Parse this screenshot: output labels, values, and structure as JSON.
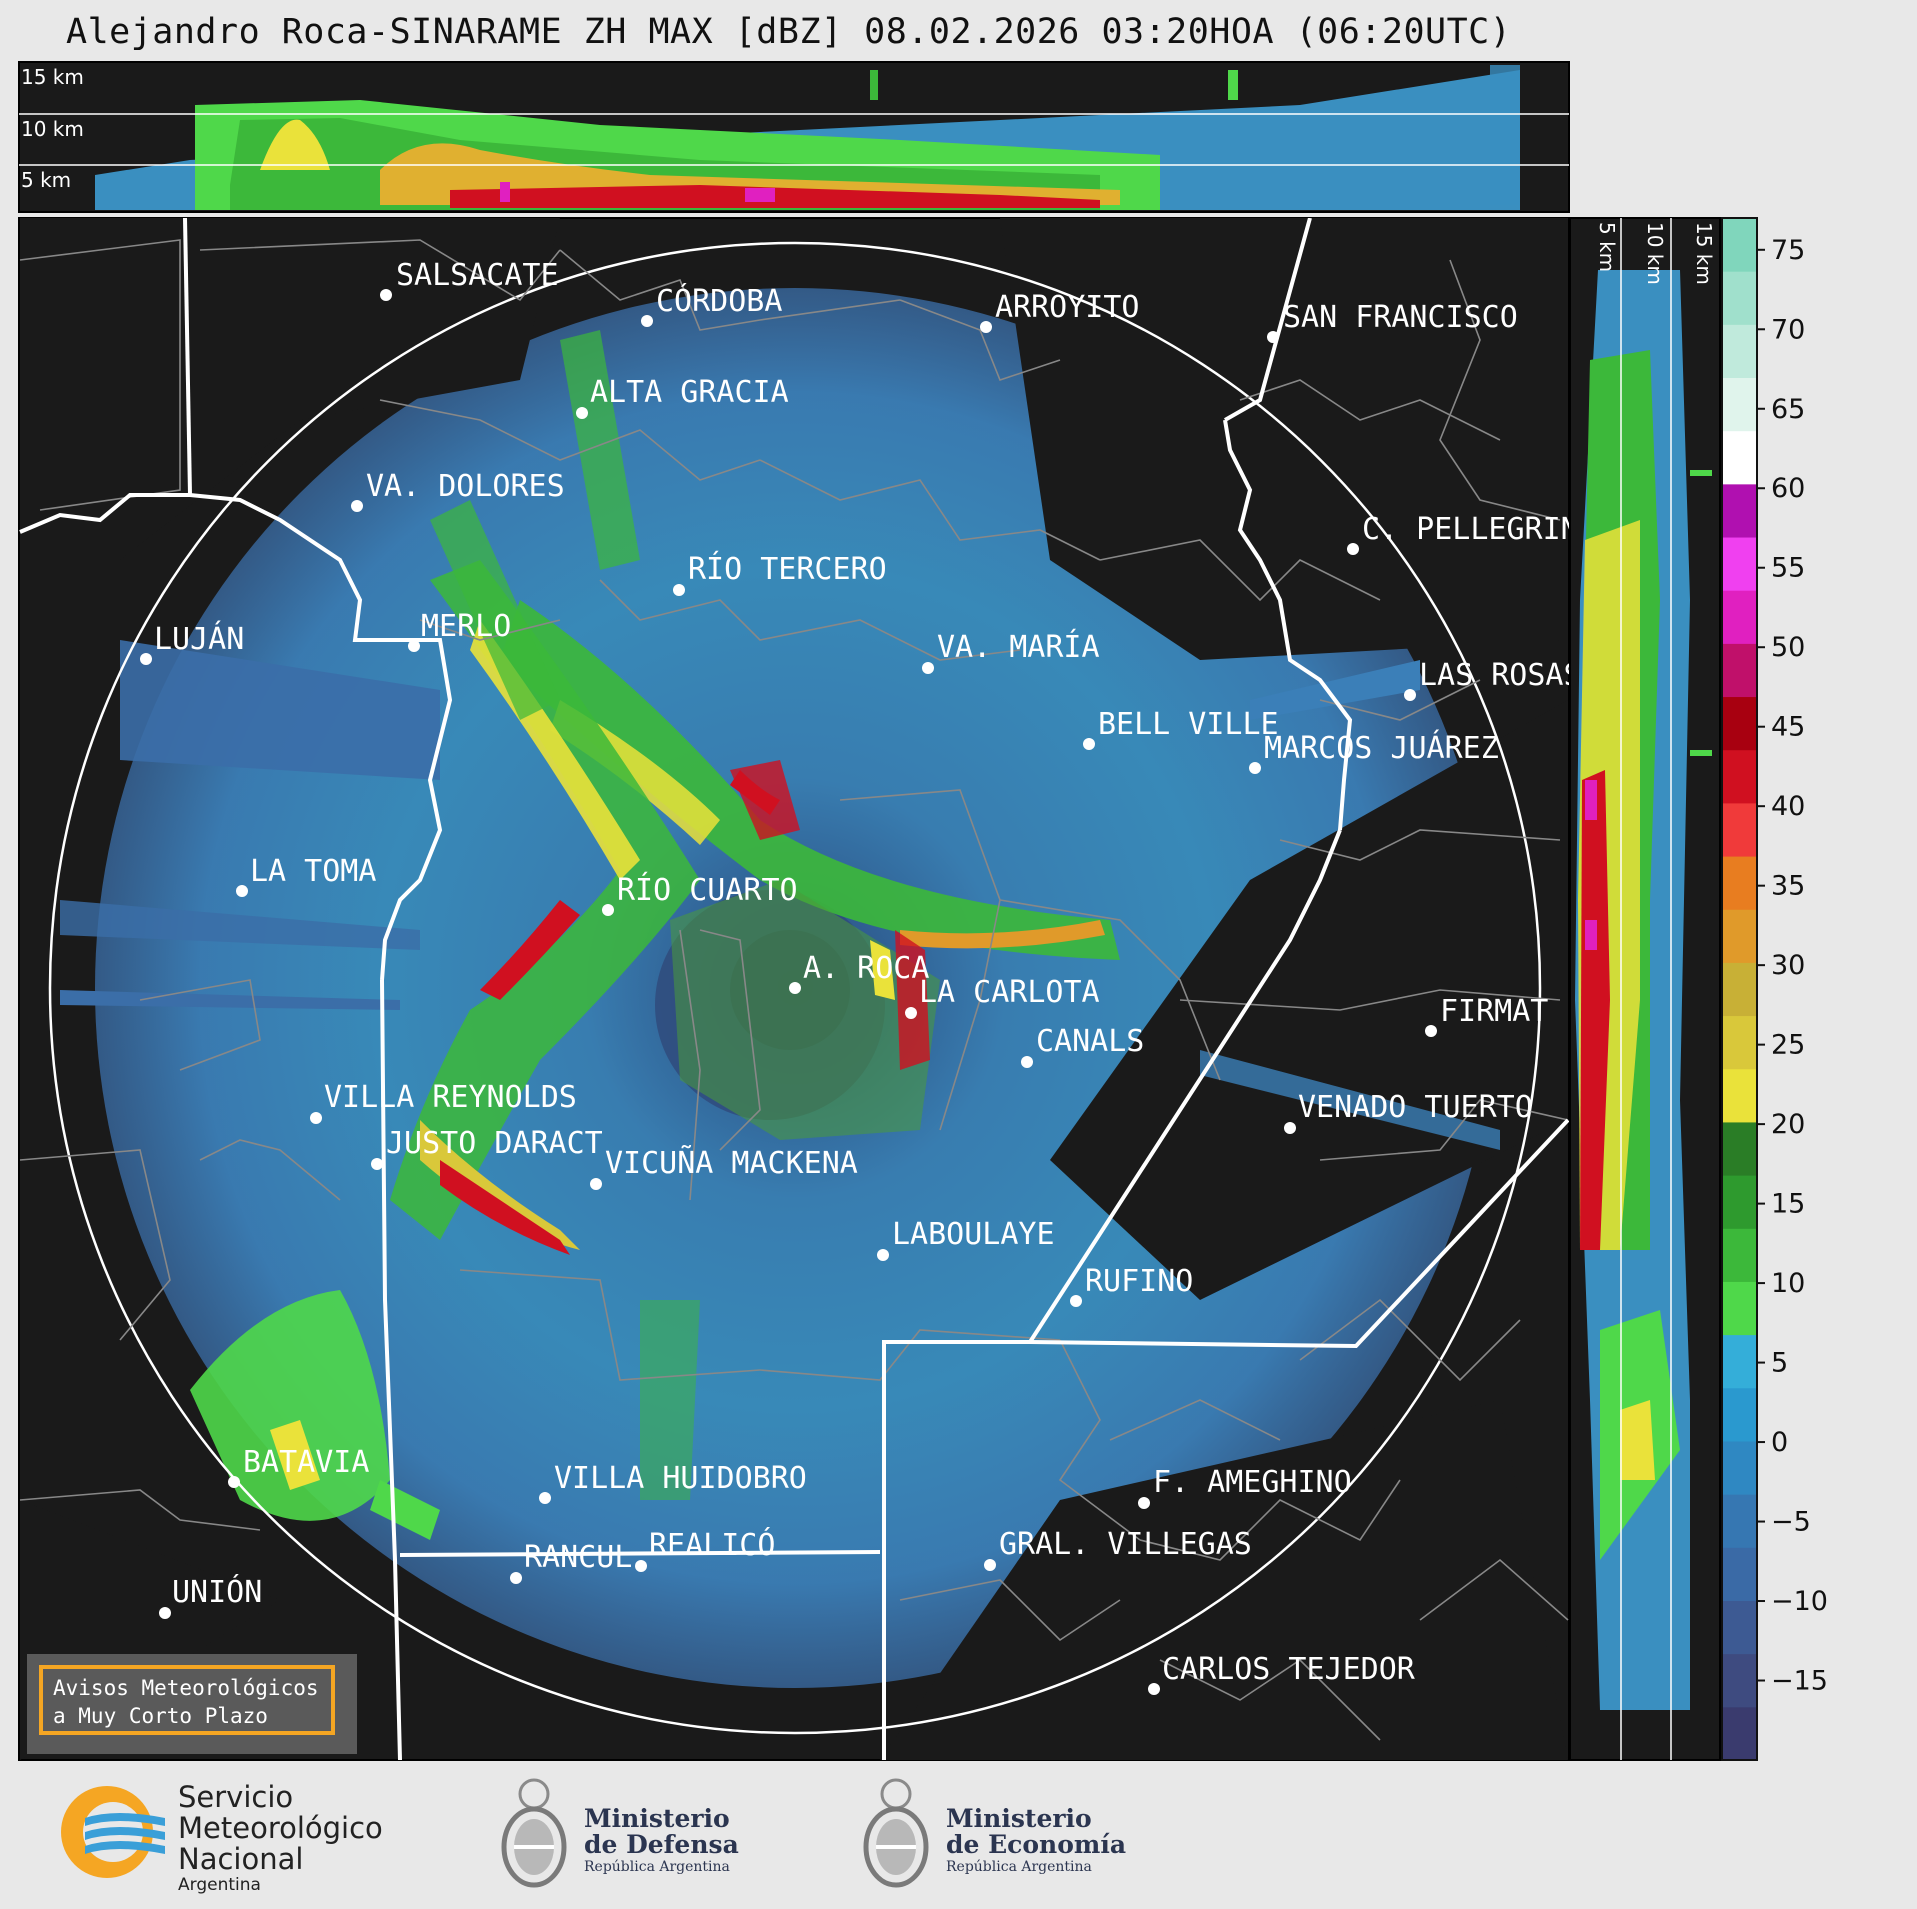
{
  "title": "Alejandro Roca-SINARAME ZH MAX [dBZ] 08.02.2026 03:20HOA (06:20UTC)",
  "top_panel": {
    "altitudes": [
      "15 km",
      "10 km",
      "5 km"
    ]
  },
  "side_panel": {
    "altitudes": [
      "5 km",
      "10 km",
      "15 km"
    ]
  },
  "colorbar": {
    "ticks": [
      "75",
      "70",
      "65",
      "60",
      "55",
      "50",
      "45",
      "40",
      "35",
      "30",
      "25",
      "20",
      "15",
      "10",
      "5",
      "0",
      "−5",
      "−10",
      "−15"
    ],
    "colors": [
      "#3a3b6e",
      "#3e4b80",
      "#3d5a93",
      "#3a6aa6",
      "#3677b2",
      "#2f88c2",
      "#2a99cf",
      "#34aed9",
      "#4fd84a",
      "#3cb83a",
      "#2e9a2e",
      "#2a7d26",
      "#eae23a",
      "#d9c83a",
      "#c8b036",
      "#e09a2a",
      "#e87d20",
      "#f03a3a",
      "#d01020",
      "#a80010",
      "#c0106a",
      "#e020c0",
      "#f040f0",
      "#b010b0",
      "#ffffff",
      "#e0f4ec",
      "#c0eadc",
      "#a0e0cc",
      "#80d6bc"
    ],
    "range_dbz": [
      -20,
      77
    ]
  },
  "cities": [
    {
      "name": "SALSACATE"
    },
    {
      "name": "CÓRDOBA"
    },
    {
      "name": "ARROYITO"
    },
    {
      "name": "SAN FRANCISCO"
    },
    {
      "name": "ALTA GRACIA"
    },
    {
      "name": "VA. DOLORES"
    },
    {
      "name": "C. PELLEGRINI"
    },
    {
      "name": "RÍO TERCERO"
    },
    {
      "name": "LUJÁN"
    },
    {
      "name": "MERLO"
    },
    {
      "name": "VA. MARÍA"
    },
    {
      "name": "LAS ROSAS"
    },
    {
      "name": "BELL VILLE"
    },
    {
      "name": "MARCOS JUÁREZ"
    },
    {
      "name": "LA TOMA"
    },
    {
      "name": "RÍO CUARTO"
    },
    {
      "name": "A. ROCA"
    },
    {
      "name": "LA CARLOTA"
    },
    {
      "name": "FIRMAT"
    },
    {
      "name": "CANALS"
    },
    {
      "name": "VILLA REYNOLDS"
    },
    {
      "name": "VENADO TUERTO"
    },
    {
      "name": "JUSTO DARACT"
    },
    {
      "name": "VICUÑA MACKENA"
    },
    {
      "name": "LABOULAYE"
    },
    {
      "name": "RUFINO"
    },
    {
      "name": "BATAVIA"
    },
    {
      "name": "VILLA HUIDOBRO"
    },
    {
      "name": "F. AMEGHINO"
    },
    {
      "name": "RANCUL"
    },
    {
      "name": "REALICÓ"
    },
    {
      "name": "GRAL. VILLEGAS"
    },
    {
      "name": "UNIÓN"
    },
    {
      "name": "CARLOS TEJEDOR"
    }
  ],
  "warning_box": {
    "line1": "Avisos Meteorológicos",
    "line2": "a Muy Corto Plazo"
  },
  "logos": {
    "smn": {
      "line1": "Servicio",
      "line2": "Meteorológico",
      "line3": "Nacional",
      "line4": "Argentina"
    },
    "defensa": {
      "line1": "Ministerio",
      "line2": "de Defensa",
      "line3": "República Argentina"
    },
    "economia": {
      "line1": "Ministerio",
      "line2": "de Economía",
      "line3": "República Argentina"
    }
  }
}
